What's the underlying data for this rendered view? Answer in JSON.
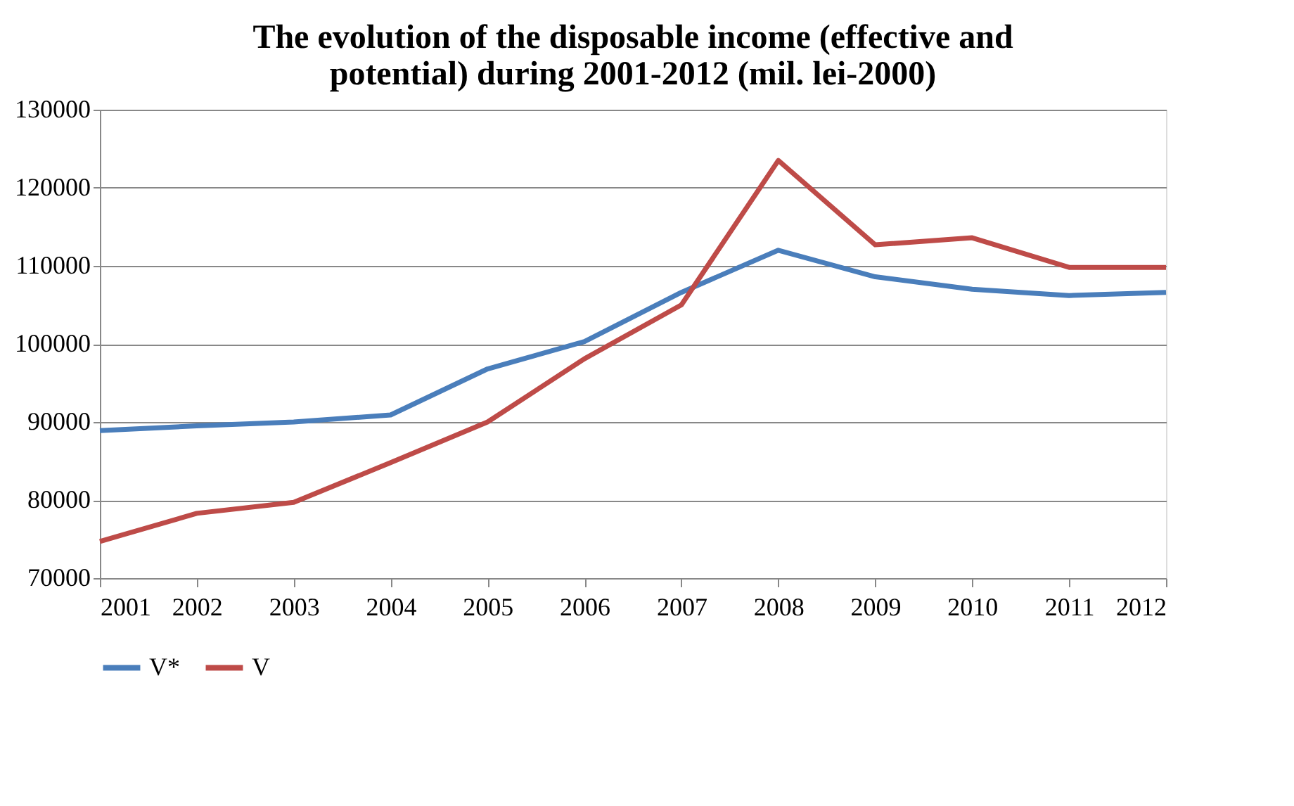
{
  "chart_data": {
    "type": "line",
    "title": [
      "The evolution of the disposable income (effective and",
      "potential) during 2001-2012 (mil. lei-2000)"
    ],
    "categories": [
      "2001",
      "2002",
      "2003",
      "2004",
      "2005",
      "2006",
      "2007",
      "2008",
      "2009",
      "2010",
      "2011",
      "2012"
    ],
    "series": [
      {
        "name": "V*",
        "color": "#4a7ebb",
        "values": [
          88900,
          89500,
          90000,
          90900,
          96800,
          100300,
          106600,
          112000,
          108600,
          107000,
          106200,
          106600
        ]
      },
      {
        "name": "V",
        "color": "#be4b48",
        "values": [
          74700,
          78300,
          79700,
          84800,
          90000,
          98100,
          105000,
          123500,
          112700,
          113600,
          109800,
          109800
        ]
      }
    ],
    "ylim": [
      70000,
      130000
    ],
    "yticks": [
      70000,
      80000,
      90000,
      100000,
      110000,
      120000,
      130000
    ],
    "grid": "y",
    "legend": "bottom",
    "marker": "none",
    "line_style": "solid"
  }
}
